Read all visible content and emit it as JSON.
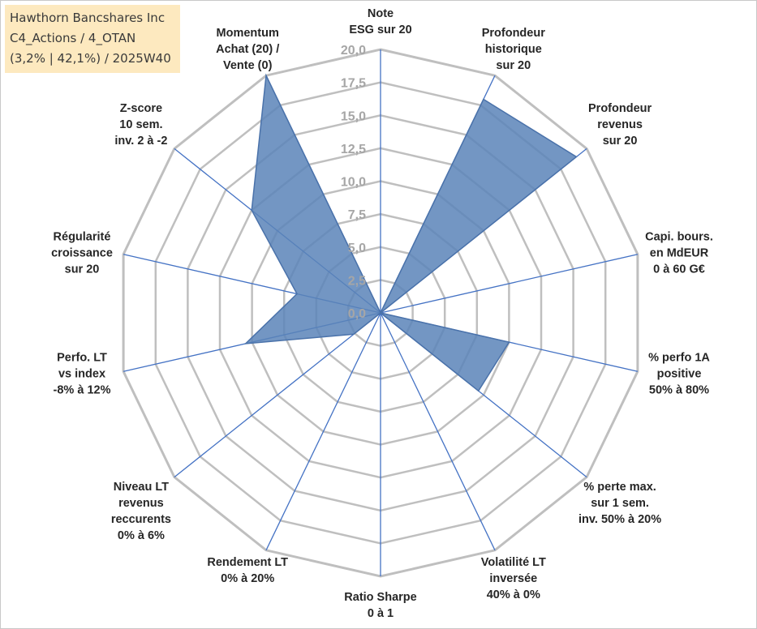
{
  "title_box": {
    "line1": "Hawthorn Bancshares Inc",
    "line2": "C4_Actions / 4_OTAN",
    "line3": "(3,2% | 42,1%) / 2025W40"
  },
  "colors": {
    "grid": "#bfbfbf",
    "spoke": "#4472c4",
    "fill": "#5b84b8",
    "stroke": "#4a72aa",
    "title_bg": "#fde9bf",
    "tick_text": "#a6a6a6"
  },
  "chart_data": {
    "type": "radar",
    "rmax": 20,
    "ticks": [
      "0,0",
      "2,5",
      "5,0",
      "7,5",
      "10,0",
      "12,5",
      "15,0",
      "17,5",
      "20,0"
    ],
    "axes": [
      {
        "label": [
          "Note",
          "ESG sur 20"
        ],
        "value": 0
      },
      {
        "label": [
          "Profondeur",
          "historique",
          "sur 20"
        ],
        "value": 18
      },
      {
        "label": [
          "Profondeur",
          "revenus",
          "sur 20"
        ],
        "value": 19
      },
      {
        "label": [
          "Capi. bours.",
          "en MdEUR",
          "0 à 60 G€"
        ],
        "value": 0
      },
      {
        "label": [
          "% perfo 1A",
          "positive",
          "50% à 80%"
        ],
        "value": 10
      },
      {
        "label": [
          "% perte max.",
          "sur 1 sem.",
          "inv. 50% à 20%"
        ],
        "value": 9.5
      },
      {
        "label": [
          "Volatilité LT",
          "inversée",
          "40% à 0%"
        ],
        "value": 0
      },
      {
        "label": [
          "Ratio Sharpe",
          "0 à 1"
        ],
        "value": 0
      },
      {
        "label": [
          "Rendement LT",
          "0% à 20%"
        ],
        "value": 0
      },
      {
        "label": [
          "Niveau LT",
          "revenus",
          "reccurents",
          "0% à 6%"
        ],
        "value": 2.6
      },
      {
        "label": [
          "Perfo. LT",
          "vs index",
          "-8% à 12%"
        ],
        "value": 10.5
      },
      {
        "label": [
          "Régularité",
          "croissance",
          "sur 20"
        ],
        "value": 6.5
      },
      {
        "label": [
          "Z-score",
          "10 sem.",
          "inv. 2 à -2"
        ],
        "value": 12.5
      },
      {
        "label": [
          "Momentum",
          "Achat (20) /",
          "Vente (0)"
        ],
        "value": 20
      }
    ]
  }
}
